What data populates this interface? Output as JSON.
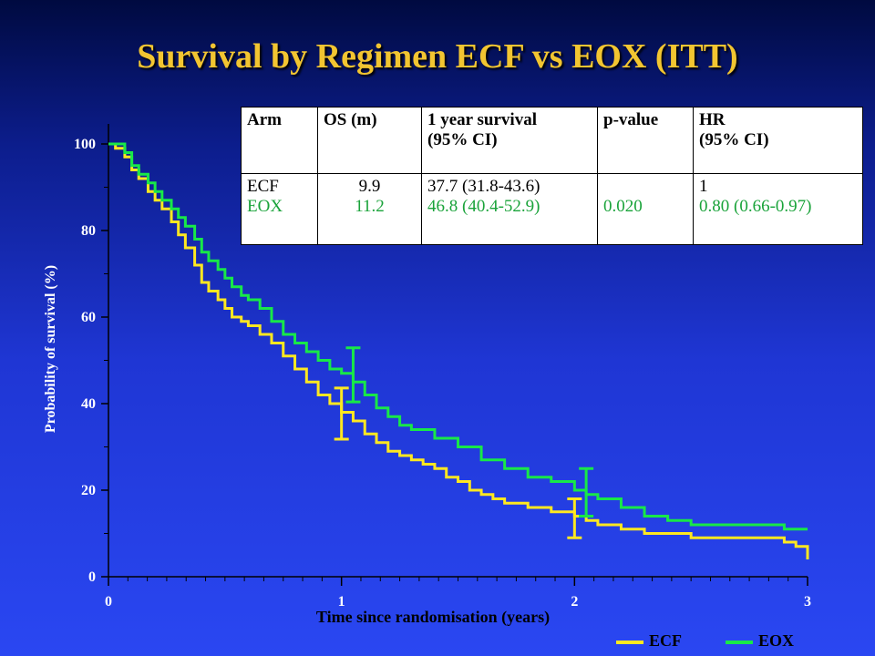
{
  "title": "Survival by Regimen ECF vs EOX (ITT)",
  "table": {
    "headers": {
      "arm": "Arm",
      "os": "OS (m)",
      "surv_line1": "1 year survival",
      "surv_line2": "(95% CI)",
      "pvalue": "p-value",
      "hr_line1": "HR",
      "hr_line2": "(95% CI)"
    },
    "ecf": {
      "arm": "ECF",
      "os": "9.9",
      "surv": "37.7 (31.8-43.6)",
      "hr": "1"
    },
    "eox": {
      "arm": "EOX",
      "os": "11.2",
      "surv": "46.8 (40.4-52.9)",
      "hr": "0.80 (0.66-0.97)"
    },
    "pvalue": "0.020"
  },
  "legend": {
    "ecf": "ECF",
    "eox": "EOX"
  },
  "colors": {
    "ecf": "#ffe820",
    "eox": "#18e848",
    "title": "#f2c531"
  },
  "chart_data": {
    "type": "line",
    "xlabel": "Time since randomisation (years)",
    "ylabel": "Probability of survival (%)",
    "xlim": [
      0,
      3
    ],
    "ylim": [
      0,
      100
    ],
    "xticks": [
      "0",
      "1",
      "2",
      "3"
    ],
    "yticks": [
      "0",
      "20",
      "40",
      "60",
      "80",
      "100"
    ],
    "series": [
      {
        "name": "ECF",
        "color": "#ffe820",
        "x": [
          0,
          0.03,
          0.07,
          0.1,
          0.13,
          0.17,
          0.2,
          0.23,
          0.27,
          0.3,
          0.33,
          0.37,
          0.4,
          0.43,
          0.47,
          0.5,
          0.53,
          0.57,
          0.6,
          0.65,
          0.7,
          0.75,
          0.8,
          0.85,
          0.9,
          0.95,
          1.0,
          1.05,
          1.1,
          1.15,
          1.2,
          1.25,
          1.3,
          1.35,
          1.4,
          1.45,
          1.5,
          1.55,
          1.6,
          1.65,
          1.7,
          1.8,
          1.9,
          2.0,
          2.05,
          2.1,
          2.2,
          2.3,
          2.4,
          2.5,
          2.6,
          2.7,
          2.8,
          2.9,
          2.95,
          3.0
        ],
        "y": [
          100,
          99,
          97,
          94,
          92,
          89,
          87,
          85,
          82,
          79,
          76,
          72,
          68,
          66,
          64,
          62,
          60,
          59,
          58,
          56,
          54,
          51,
          48,
          45,
          42,
          40,
          38,
          36,
          33,
          31,
          29,
          28,
          27,
          26,
          25,
          23,
          22,
          20,
          19,
          18,
          17,
          16,
          15,
          14,
          13,
          12,
          11,
          10,
          10,
          9,
          9,
          9,
          9,
          8,
          7,
          4
        ]
      },
      {
        "name": "EOX",
        "color": "#18e848",
        "x": [
          0,
          0.03,
          0.07,
          0.1,
          0.13,
          0.17,
          0.2,
          0.23,
          0.27,
          0.3,
          0.33,
          0.37,
          0.4,
          0.43,
          0.47,
          0.5,
          0.53,
          0.57,
          0.6,
          0.65,
          0.7,
          0.75,
          0.8,
          0.85,
          0.9,
          0.95,
          1.0,
          1.05,
          1.1,
          1.15,
          1.2,
          1.25,
          1.3,
          1.4,
          1.5,
          1.6,
          1.7,
          1.8,
          1.9,
          2.0,
          2.05,
          2.1,
          2.2,
          2.3,
          2.4,
          2.5,
          2.6,
          2.7,
          2.8,
          2.9,
          3.0
        ],
        "y": [
          100,
          100,
          98,
          95,
          93,
          91,
          89,
          87,
          85,
          83,
          81,
          78,
          75,
          73,
          71,
          69,
          67,
          65,
          64,
          62,
          59,
          56,
          54,
          52,
          50,
          48,
          47,
          45,
          42,
          39,
          37,
          35,
          34,
          32,
          30,
          27,
          25,
          23,
          22,
          20,
          19,
          18,
          16,
          14,
          13,
          12,
          12,
          12,
          12,
          11,
          11
        ]
      }
    ],
    "error_bars": [
      {
        "series": "ECF",
        "x": 1.0,
        "low": 31.8,
        "high": 43.6
      },
      {
        "series": "EOX",
        "x": 1.05,
        "low": 40.4,
        "high": 52.9
      },
      {
        "series": "ECF",
        "x": 2.0,
        "low": 9,
        "high": 18
      },
      {
        "series": "EOX",
        "x": 2.05,
        "low": 14,
        "high": 25
      }
    ]
  }
}
